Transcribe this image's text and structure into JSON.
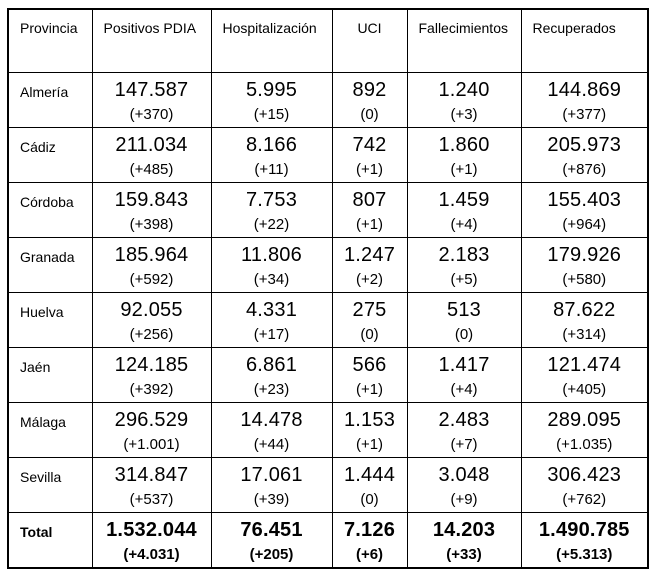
{
  "colors": {
    "background": "#ffffff",
    "text": "#000000",
    "border": "#000000"
  },
  "table": {
    "columns": [
      {
        "label": "Provincia"
      },
      {
        "label": "Positivos PDIA"
      },
      {
        "label": "Hospitalización"
      },
      {
        "label": "UCI"
      },
      {
        "label": "Fallecimientos"
      },
      {
        "label": "Recuperados"
      }
    ],
    "rows": [
      {
        "provincia": "Almería",
        "cells": [
          {
            "value": "147.587",
            "delta": "(+370)"
          },
          {
            "value": "5.995",
            "delta": "(+15)"
          },
          {
            "value": "892",
            "delta": "(0)"
          },
          {
            "value": "1.240",
            "delta": "(+3)"
          },
          {
            "value": "144.869",
            "delta": "(+377)"
          }
        ]
      },
      {
        "provincia": "Cádiz",
        "cells": [
          {
            "value": "211.034",
            "delta": "(+485)"
          },
          {
            "value": "8.166",
            "delta": "(+11)"
          },
          {
            "value": "742",
            "delta": "(+1)"
          },
          {
            "value": "1.860",
            "delta": "(+1)"
          },
          {
            "value": "205.973",
            "delta": "(+876)"
          }
        ]
      },
      {
        "provincia": "Córdoba",
        "cells": [
          {
            "value": "159.843",
            "delta": "(+398)"
          },
          {
            "value": "7.753",
            "delta": "(+22)"
          },
          {
            "value": "807",
            "delta": "(+1)"
          },
          {
            "value": "1.459",
            "delta": "(+4)"
          },
          {
            "value": "155.403",
            "delta": "(+964)"
          }
        ]
      },
      {
        "provincia": "Granada",
        "cells": [
          {
            "value": "185.964",
            "delta": "(+592)"
          },
          {
            "value": "11.806",
            "delta": "(+34)"
          },
          {
            "value": "1.247",
            "delta": "(+2)"
          },
          {
            "value": "2.183",
            "delta": "(+5)"
          },
          {
            "value": "179.926",
            "delta": "(+580)"
          }
        ]
      },
      {
        "provincia": "Huelva",
        "cells": [
          {
            "value": "92.055",
            "delta": "(+256)"
          },
          {
            "value": "4.331",
            "delta": "(+17)"
          },
          {
            "value": "275",
            "delta": "(0)"
          },
          {
            "value": "513",
            "delta": "(0)"
          },
          {
            "value": "87.622",
            "delta": "(+314)"
          }
        ]
      },
      {
        "provincia": "Jaén",
        "cells": [
          {
            "value": "124.185",
            "delta": "(+392)"
          },
          {
            "value": "6.861",
            "delta": "(+23)"
          },
          {
            "value": "566",
            "delta": "(+1)"
          },
          {
            "value": "1.417",
            "delta": "(+4)"
          },
          {
            "value": "121.474",
            "delta": "(+405)"
          }
        ]
      },
      {
        "provincia": "Málaga",
        "cells": [
          {
            "value": "296.529",
            "delta": "(+1.001)"
          },
          {
            "value": "14.478",
            "delta": "(+44)"
          },
          {
            "value": "1.153",
            "delta": "(+1)"
          },
          {
            "value": "2.483",
            "delta": "(+7)"
          },
          {
            "value": "289.095",
            "delta": "(+1.035)"
          }
        ]
      },
      {
        "provincia": "Sevilla",
        "cells": [
          {
            "value": "314.847",
            "delta": "(+537)"
          },
          {
            "value": "17.061",
            "delta": "(+39)"
          },
          {
            "value": "1.444",
            "delta": "(0)"
          },
          {
            "value": "3.048",
            "delta": "(+9)"
          },
          {
            "value": "306.423",
            "delta": "(+762)"
          }
        ]
      }
    ],
    "total": {
      "provincia": "Total",
      "cells": [
        {
          "value": "1.532.044",
          "delta": "(+4.031)"
        },
        {
          "value": "76.451",
          "delta": "(+205)"
        },
        {
          "value": "7.126",
          "delta": "(+6)"
        },
        {
          "value": "14.203",
          "delta": "(+33)"
        },
        {
          "value": "1.490.785",
          "delta": "(+5.313)"
        }
      ]
    }
  }
}
